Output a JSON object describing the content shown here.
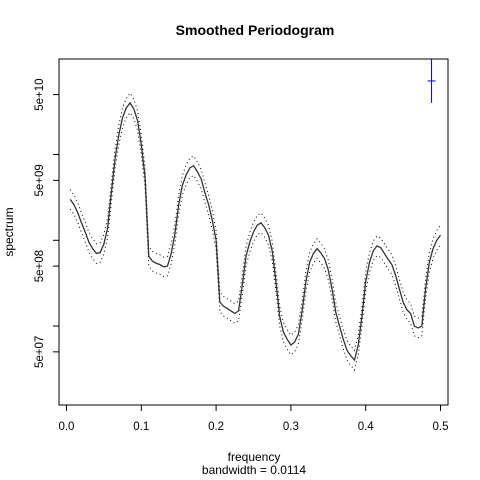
{
  "chart_data": {
    "type": "line",
    "title": "Smoothed Periodogram",
    "xlabel": "frequency",
    "xlabel_sub": "bandwidth = 0.0114",
    "ylabel": "spectrum",
    "y_scale": "log",
    "xlim": [
      -0.01,
      0.51
    ],
    "ylim": [
      12000000,
      130000000000
    ],
    "x_ticks": [
      0.0,
      0.1,
      0.2,
      0.3,
      0.4,
      0.5
    ],
    "x_tick_labels": [
      "0.0",
      "0.1",
      "0.2",
      "0.3",
      "0.4",
      "0.5"
    ],
    "y_ticks": [
      50000000,
      500000000,
      5000000000,
      50000000000
    ],
    "y_tick_labels": [
      "5e+07",
      "5e+08",
      "5e+09",
      "5e+10"
    ],
    "y_minor_ticks": [
      100000000,
      1000000000,
      10000000000
    ],
    "ci_bar": {
      "x": 0.488,
      "y_low": 40000000000,
      "y_high": 130000000000,
      "color": "#0000ff"
    },
    "line_color": "#333333",
    "band_color": "#000000",
    "series": [
      {
        "x": [
          0.005,
          0.01,
          0.015,
          0.02,
          0.025,
          0.03,
          0.035,
          0.04,
          0.045,
          0.05,
          0.055,
          0.06,
          0.065,
          0.07,
          0.075,
          0.08,
          0.085,
          0.09,
          0.095,
          0.1,
          0.105,
          0.11,
          0.115,
          0.12,
          0.125,
          0.13,
          0.135,
          0.14,
          0.145,
          0.15,
          0.155,
          0.16,
          0.165,
          0.17,
          0.175,
          0.18,
          0.185,
          0.19,
          0.195,
          0.2,
          0.205,
          0.21,
          0.215,
          0.22,
          0.225,
          0.23,
          0.235,
          0.24,
          0.245,
          0.25,
          0.255,
          0.26,
          0.265,
          0.27,
          0.275,
          0.28,
          0.285,
          0.29,
          0.295,
          0.3,
          0.305,
          0.31,
          0.315,
          0.32,
          0.325,
          0.33,
          0.335,
          0.34,
          0.345,
          0.35,
          0.355,
          0.36,
          0.365,
          0.37,
          0.375,
          0.38,
          0.385,
          0.39,
          0.395,
          0.4,
          0.405,
          0.41,
          0.415,
          0.42,
          0.425,
          0.43,
          0.435,
          0.44,
          0.445,
          0.45,
          0.455,
          0.46,
          0.465,
          0.47,
          0.475,
          0.48,
          0.485,
          0.49,
          0.495,
          0.5
        ],
        "y": [
          3000000000,
          2600000000,
          2100000000,
          1600000000,
          1250000000,
          950000000,
          800000000,
          700000000,
          720000000,
          900000000,
          1400000000,
          3600000000,
          9000000000,
          17000000000,
          27000000000,
          35000000000,
          40000000000,
          34000000000,
          25000000000,
          13000000000,
          5500000000,
          650000000,
          570000000,
          540000000,
          520000000,
          490000000,
          500000000,
          700000000,
          1200000000,
          2600000000,
          4400000000,
          5800000000,
          7000000000,
          7400000000,
          6300000000,
          5200000000,
          3600000000,
          2600000000,
          1700000000,
          1000000000,
          190000000,
          170000000,
          160000000,
          150000000,
          140000000,
          150000000,
          300000000,
          650000000,
          950000000,
          1250000000,
          1500000000,
          1600000000,
          1400000000,
          1150000000,
          750000000,
          330000000,
          130000000,
          85000000,
          70000000,
          60000000,
          65000000,
          80000000,
          150000000,
          330000000,
          550000000,
          700000000,
          800000000,
          710000000,
          610000000,
          450000000,
          270000000,
          145000000,
          100000000,
          70000000,
          52000000,
          45000000,
          40000000,
          60000000,
          130000000,
          330000000,
          550000000,
          750000000,
          860000000,
          820000000,
          700000000,
          600000000,
          520000000,
          390000000,
          270000000,
          190000000,
          155000000,
          140000000,
          100000000,
          95000000,
          100000000,
          270000000,
          550000000,
          800000000,
          1000000000,
          1150000000
        ]
      }
    ]
  }
}
